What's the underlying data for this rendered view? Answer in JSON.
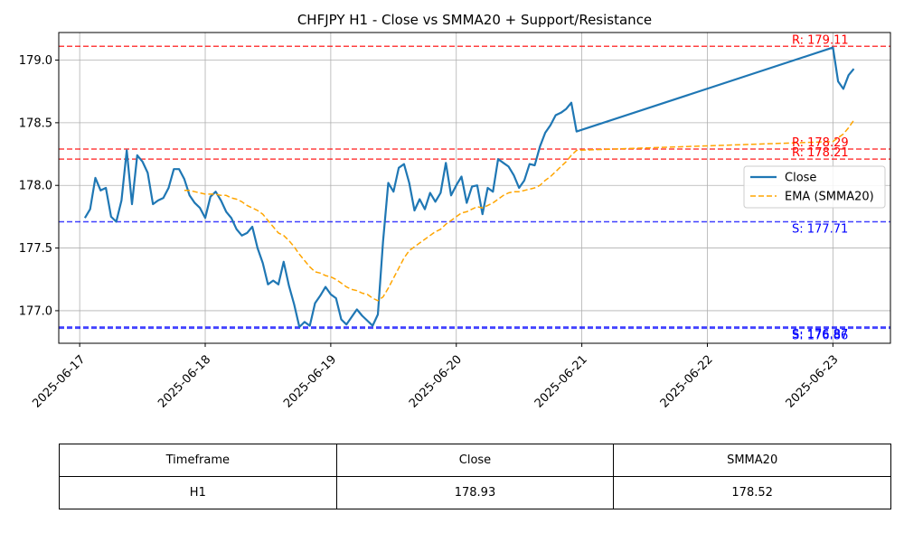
{
  "chart_data": {
    "type": "line",
    "title": "CHFJPY H1 - Close vs SMMA20 + Support/Resistance",
    "xlabel": "",
    "ylabel": "",
    "x_ticks": [
      "2025-06-17",
      "2025-06-18",
      "2025-06-19",
      "2025-06-20",
      "2025-06-21",
      "2025-06-22",
      "2025-06-23"
    ],
    "y_ticks": [
      177.0,
      177.5,
      178.0,
      178.5,
      179.0
    ],
    "xlim": [
      "2025-06-16 20:00",
      "2025-06-23 11:00"
    ],
    "ylim": [
      176.74,
      179.22
    ],
    "grid": true,
    "legend": {
      "position": "center-right",
      "entries": [
        {
          "label": "Close",
          "color": "#1f77b4",
          "style": "solid"
        },
        {
          "label": "EMA (SMMA20)",
          "color": "#ffa500",
          "style": "dashed"
        }
      ]
    },
    "series": [
      {
        "name": "Close",
        "color": "#1f77b4",
        "style": "solid",
        "points": [
          [
            "2025-06-17 01:00",
            177.74
          ],
          [
            "2025-06-17 02:00",
            177.81
          ],
          [
            "2025-06-17 03:00",
            178.06
          ],
          [
            "2025-06-17 04:00",
            177.96
          ],
          [
            "2025-06-17 05:00",
            177.98
          ],
          [
            "2025-06-17 06:00",
            177.75
          ],
          [
            "2025-06-17 07:00",
            177.71
          ],
          [
            "2025-06-17 08:00",
            177.88
          ],
          [
            "2025-06-17 09:00",
            178.28
          ],
          [
            "2025-06-17 10:00",
            177.85
          ],
          [
            "2025-06-17 11:00",
            178.24
          ],
          [
            "2025-06-17 12:00",
            178.19
          ],
          [
            "2025-06-17 13:00",
            178.1
          ],
          [
            "2025-06-17 14:00",
            177.85
          ],
          [
            "2025-06-17 15:00",
            177.88
          ],
          [
            "2025-06-17 16:00",
            177.9
          ],
          [
            "2025-06-17 17:00",
            177.98
          ],
          [
            "2025-06-17 18:00",
            178.13
          ],
          [
            "2025-06-17 19:00",
            178.13
          ],
          [
            "2025-06-17 20:00",
            178.05
          ],
          [
            "2025-06-17 21:00",
            177.92
          ],
          [
            "2025-06-17 22:00",
            177.86
          ],
          [
            "2025-06-17 23:00",
            177.82
          ],
          [
            "2025-06-18 00:00",
            177.74
          ],
          [
            "2025-06-18 01:00",
            177.91
          ],
          [
            "2025-06-18 02:00",
            177.95
          ],
          [
            "2025-06-18 03:00",
            177.88
          ],
          [
            "2025-06-18 04:00",
            177.79
          ],
          [
            "2025-06-18 05:00",
            177.74
          ],
          [
            "2025-06-18 06:00",
            177.65
          ],
          [
            "2025-06-18 07:00",
            177.6
          ],
          [
            "2025-06-18 08:00",
            177.62
          ],
          [
            "2025-06-18 09:00",
            177.67
          ],
          [
            "2025-06-18 10:00",
            177.5
          ],
          [
            "2025-06-18 11:00",
            177.38
          ],
          [
            "2025-06-18 12:00",
            177.21
          ],
          [
            "2025-06-18 13:00",
            177.24
          ],
          [
            "2025-06-18 14:00",
            177.21
          ],
          [
            "2025-06-18 15:00",
            177.39
          ],
          [
            "2025-06-18 16:00",
            177.2
          ],
          [
            "2025-06-18 17:00",
            177.05
          ],
          [
            "2025-06-18 18:00",
            176.87
          ],
          [
            "2025-06-18 19:00",
            176.91
          ],
          [
            "2025-06-18 20:00",
            176.88
          ],
          [
            "2025-06-18 21:00",
            177.06
          ],
          [
            "2025-06-18 22:00",
            177.12
          ],
          [
            "2025-06-18 23:00",
            177.19
          ],
          [
            "2025-06-19 00:00",
            177.13
          ],
          [
            "2025-06-19 01:00",
            177.1
          ],
          [
            "2025-06-19 02:00",
            176.93
          ],
          [
            "2025-06-19 03:00",
            176.89
          ],
          [
            "2025-06-19 04:00",
            176.95
          ],
          [
            "2025-06-19 05:00",
            177.01
          ],
          [
            "2025-06-19 06:00",
            176.96
          ],
          [
            "2025-06-19 07:00",
            176.92
          ],
          [
            "2025-06-19 08:00",
            176.88
          ],
          [
            "2025-06-19 09:00",
            176.97
          ],
          [
            "2025-06-19 10:00",
            177.55
          ],
          [
            "2025-06-19 11:00",
            178.02
          ],
          [
            "2025-06-19 12:00",
            177.95
          ],
          [
            "2025-06-19 13:00",
            178.14
          ],
          [
            "2025-06-19 14:00",
            178.17
          ],
          [
            "2025-06-19 15:00",
            178.02
          ],
          [
            "2025-06-19 16:00",
            177.8
          ],
          [
            "2025-06-19 17:00",
            177.89
          ],
          [
            "2025-06-19 18:00",
            177.81
          ],
          [
            "2025-06-19 19:00",
            177.94
          ],
          [
            "2025-06-19 20:00",
            177.87
          ],
          [
            "2025-06-19 21:00",
            177.94
          ],
          [
            "2025-06-19 22:00",
            178.18
          ],
          [
            "2025-06-19 23:00",
            177.92
          ],
          [
            "2025-06-20 00:00",
            178.0
          ],
          [
            "2025-06-20 01:00",
            178.07
          ],
          [
            "2025-06-20 02:00",
            177.86
          ],
          [
            "2025-06-20 03:00",
            177.99
          ],
          [
            "2025-06-20 04:00",
            178.0
          ],
          [
            "2025-06-20 05:00",
            177.77
          ],
          [
            "2025-06-20 06:00",
            177.98
          ],
          [
            "2025-06-20 07:00",
            177.95
          ],
          [
            "2025-06-20 08:00",
            178.21
          ],
          [
            "2025-06-20 09:00",
            178.18
          ],
          [
            "2025-06-20 10:00",
            178.15
          ],
          [
            "2025-06-20 11:00",
            178.08
          ],
          [
            "2025-06-20 12:00",
            177.98
          ],
          [
            "2025-06-20 13:00",
            178.04
          ],
          [
            "2025-06-20 14:00",
            178.17
          ],
          [
            "2025-06-20 15:00",
            178.16
          ],
          [
            "2025-06-20 16:00",
            178.31
          ],
          [
            "2025-06-20 17:00",
            178.42
          ],
          [
            "2025-06-20 18:00",
            178.48
          ],
          [
            "2025-06-20 19:00",
            178.56
          ],
          [
            "2025-06-20 20:00",
            178.58
          ],
          [
            "2025-06-20 21:00",
            178.61
          ],
          [
            "2025-06-20 22:00",
            178.66
          ],
          [
            "2025-06-20 23:00",
            178.43
          ],
          [
            "2025-06-23 00:00",
            179.1
          ],
          [
            "2025-06-23 01:00",
            178.83
          ],
          [
            "2025-06-23 02:00",
            178.77
          ],
          [
            "2025-06-23 03:00",
            178.88
          ],
          [
            "2025-06-23 04:00",
            178.93
          ]
        ]
      },
      {
        "name": "EMA (SMMA20)",
        "color": "#ffa500",
        "style": "dashed",
        "points": [
          [
            "2025-06-17 20:00",
            177.96
          ],
          [
            "2025-06-17 21:00",
            177.96
          ],
          [
            "2025-06-17 22:00",
            177.95
          ],
          [
            "2025-06-17 23:00",
            177.94
          ],
          [
            "2025-06-18 00:00",
            177.93
          ],
          [
            "2025-06-18 01:00",
            177.93
          ],
          [
            "2025-06-18 02:00",
            177.93
          ],
          [
            "2025-06-18 03:00",
            177.92
          ],
          [
            "2025-06-18 04:00",
            177.92
          ],
          [
            "2025-06-18 05:00",
            177.9
          ],
          [
            "2025-06-18 06:00",
            177.89
          ],
          [
            "2025-06-18 07:00",
            177.87
          ],
          [
            "2025-06-18 08:00",
            177.84
          ],
          [
            "2025-06-18 09:00",
            177.82
          ],
          [
            "2025-06-18 10:00",
            177.8
          ],
          [
            "2025-06-18 11:00",
            177.77
          ],
          [
            "2025-06-18 12:00",
            177.72
          ],
          [
            "2025-06-18 13:00",
            177.67
          ],
          [
            "2025-06-18 14:00",
            177.62
          ],
          [
            "2025-06-18 15:00",
            177.6
          ],
          [
            "2025-06-18 16:00",
            177.56
          ],
          [
            "2025-06-18 17:00",
            177.51
          ],
          [
            "2025-06-18 18:00",
            177.45
          ],
          [
            "2025-06-18 19:00",
            177.4
          ],
          [
            "2025-06-18 20:00",
            177.35
          ],
          [
            "2025-06-18 21:00",
            177.31
          ],
          [
            "2025-06-18 22:00",
            177.3
          ],
          [
            "2025-06-18 23:00",
            177.28
          ],
          [
            "2025-06-19 00:00",
            177.27
          ],
          [
            "2025-06-19 01:00",
            177.25
          ],
          [
            "2025-06-19 02:00",
            177.22
          ],
          [
            "2025-06-19 03:00",
            177.19
          ],
          [
            "2025-06-19 04:00",
            177.17
          ],
          [
            "2025-06-19 05:00",
            177.16
          ],
          [
            "2025-06-19 06:00",
            177.14
          ],
          [
            "2025-06-19 07:00",
            177.13
          ],
          [
            "2025-06-19 08:00",
            177.1
          ],
          [
            "2025-06-19 09:00",
            177.08
          ],
          [
            "2025-06-19 10:00",
            177.11
          ],
          [
            "2025-06-19 11:00",
            177.18
          ],
          [
            "2025-06-19 12:00",
            177.26
          ],
          [
            "2025-06-19 13:00",
            177.34
          ],
          [
            "2025-06-19 14:00",
            177.42
          ],
          [
            "2025-06-19 15:00",
            177.48
          ],
          [
            "2025-06-19 16:00",
            177.51
          ],
          [
            "2025-06-19 17:00",
            177.54
          ],
          [
            "2025-06-19 18:00",
            177.57
          ],
          [
            "2025-06-19 19:00",
            177.6
          ],
          [
            "2025-06-19 20:00",
            177.63
          ],
          [
            "2025-06-19 21:00",
            177.65
          ],
          [
            "2025-06-19 22:00",
            177.69
          ],
          [
            "2025-06-19 23:00",
            177.72
          ],
          [
            "2025-06-20 00:00",
            177.75
          ],
          [
            "2025-06-20 01:00",
            177.78
          ],
          [
            "2025-06-20 02:00",
            177.79
          ],
          [
            "2025-06-20 03:00",
            177.81
          ],
          [
            "2025-06-20 04:00",
            177.83
          ],
          [
            "2025-06-20 05:00",
            177.82
          ],
          [
            "2025-06-20 06:00",
            177.84
          ],
          [
            "2025-06-20 07:00",
            177.86
          ],
          [
            "2025-06-20 08:00",
            177.89
          ],
          [
            "2025-06-20 09:00",
            177.92
          ],
          [
            "2025-06-20 10:00",
            177.94
          ],
          [
            "2025-06-20 11:00",
            177.95
          ],
          [
            "2025-06-20 12:00",
            177.95
          ],
          [
            "2025-06-20 13:00",
            177.96
          ],
          [
            "2025-06-20 14:00",
            177.97
          ],
          [
            "2025-06-20 15:00",
            177.98
          ],
          [
            "2025-06-20 16:00",
            178.0
          ],
          [
            "2025-06-20 17:00",
            178.04
          ],
          [
            "2025-06-20 18:00",
            178.07
          ],
          [
            "2025-06-20 19:00",
            178.11
          ],
          [
            "2025-06-20 20:00",
            178.15
          ],
          [
            "2025-06-20 21:00",
            178.19
          ],
          [
            "2025-06-20 22:00",
            178.24
          ],
          [
            "2025-06-20 23:00",
            178.28
          ],
          [
            "2025-06-23 00:00",
            178.35
          ],
          [
            "2025-06-23 01:00",
            178.38
          ],
          [
            "2025-06-23 02:00",
            178.41
          ],
          [
            "2025-06-23 03:00",
            178.46
          ],
          [
            "2025-06-23 04:00",
            178.52
          ]
        ]
      }
    ],
    "horizontal_lines": [
      {
        "label": "R: 179.11",
        "value": 179.11,
        "color": "#ff0000",
        "kind": "resistance"
      },
      {
        "label": "R: 178.29",
        "value": 178.29,
        "color": "#ff0000",
        "kind": "resistance"
      },
      {
        "label": "R: 178.21",
        "value": 178.21,
        "color": "#ff0000",
        "kind": "resistance"
      },
      {
        "label": "S: 177.71",
        "value": 177.71,
        "color": "#0000ff",
        "kind": "support"
      },
      {
        "label": "S: 176.87",
        "value": 176.87,
        "color": "#0000ff",
        "kind": "support"
      },
      {
        "label": "S: 176.86",
        "value": 176.86,
        "color": "#0000ff",
        "kind": "support"
      }
    ]
  },
  "table": {
    "headers": [
      "Timeframe",
      "Close",
      "SMMA20"
    ],
    "rows": [
      [
        "H1",
        "178.93",
        "178.52"
      ]
    ]
  }
}
